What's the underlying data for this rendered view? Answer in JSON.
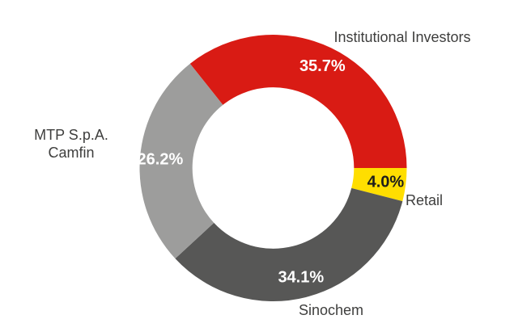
{
  "chart_data": {
    "type": "pie",
    "subtype": "donut",
    "title": "",
    "start_angle_deg_from_north_cw": -38.5,
    "inner_radius_ratio": 0.605,
    "legend_position": "outside-labels",
    "outer_label_color": "#3E3E3D",
    "background_color": "#FFFFFF",
    "segments": [
      {
        "label": "Institutional Investors",
        "value": 35.7,
        "pct_label": "35.7%",
        "color": "#D91B14",
        "pct_label_color": "#FFFFFF"
      },
      {
        "label": "Retail",
        "value": 4.0,
        "pct_label": "4.0%",
        "color": "#FFDE00",
        "pct_label_color": "#1D1D1B"
      },
      {
        "label": "Sinochem",
        "value": 34.1,
        "pct_label": "34.1%",
        "color": "#575756",
        "pct_label_color": "#FFFFFF"
      },
      {
        "label": "MTP S.p.A. Camfin",
        "label_lines": [
          "MTP S.p.A.",
          "Camfin"
        ],
        "value": 26.2,
        "pct_label": "26.2%",
        "color": "#9D9D9C",
        "pct_label_color": "#FFFFFF"
      }
    ]
  }
}
